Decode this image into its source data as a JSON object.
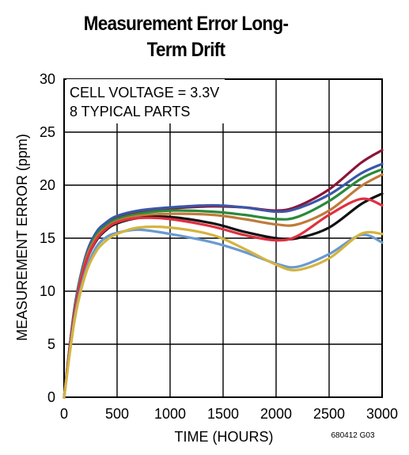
{
  "chart_data": {
    "type": "line",
    "title_lines": [
      "Measurement Error Long-",
      "Term Drift"
    ],
    "xlabel": "TIME (HOURS)",
    "ylabel": "MEASUREMENT ERROR (ppm)",
    "xlim": [
      0,
      3000
    ],
    "ylim": [
      0,
      30
    ],
    "xticks": [
      0,
      500,
      1000,
      1500,
      2000,
      2500,
      3000
    ],
    "yticks": [
      0,
      5,
      10,
      15,
      20,
      25,
      30
    ],
    "grid": true,
    "annotations": [
      "CELL VOLTAGE = 3.3V",
      "8 TYPICAL PARTS"
    ],
    "figure_code": "680412 G03",
    "colors": [
      "#8b1538",
      "#3a57a8",
      "#2a8a3a",
      "#c07a3a",
      "#111111",
      "#e03040",
      "#6a9ad0",
      "#d4b440"
    ],
    "series": [
      {
        "x": [
          0,
          100,
          200,
          300,
          400,
          500,
          700,
          1000,
          1400,
          1700,
          2000,
          2200,
          2500,
          2800,
          3000
        ],
        "values": [
          0,
          8.5,
          13.0,
          15.3,
          16.4,
          17.0,
          17.5,
          17.8,
          18.0,
          17.9,
          17.6,
          18.0,
          19.6,
          22.1,
          23.3
        ]
      },
      {
        "x": [
          0,
          100,
          200,
          300,
          400,
          500,
          700,
          1000,
          1400,
          1700,
          2000,
          2200,
          2500,
          2800,
          3000
        ],
        "values": [
          0,
          8.5,
          13.2,
          15.5,
          16.5,
          17.1,
          17.6,
          17.9,
          18.1,
          17.9,
          17.5,
          17.8,
          19.1,
          21.1,
          22.0
        ]
      },
      {
        "x": [
          0,
          100,
          200,
          300,
          400,
          500,
          700,
          1000,
          1400,
          1700,
          2000,
          2200,
          2500,
          2800,
          3000
        ],
        "values": [
          0,
          8.3,
          12.9,
          15.2,
          16.2,
          16.8,
          17.3,
          17.6,
          17.5,
          17.2,
          16.8,
          17.0,
          18.5,
          20.6,
          21.5
        ]
      },
      {
        "x": [
          0,
          100,
          200,
          300,
          400,
          500,
          700,
          1000,
          1400,
          1700,
          2000,
          2200,
          2500,
          2800,
          3000
        ],
        "values": [
          0,
          8.2,
          12.8,
          15.0,
          16.0,
          16.6,
          17.1,
          17.3,
          17.2,
          16.8,
          16.3,
          16.3,
          17.6,
          19.9,
          21.0
        ]
      },
      {
        "x": [
          0,
          100,
          200,
          300,
          400,
          500,
          700,
          1000,
          1400,
          1700,
          2000,
          2200,
          2500,
          2800,
          3000
        ],
        "values": [
          0,
          8.0,
          12.5,
          14.7,
          15.8,
          16.4,
          16.9,
          17.0,
          16.4,
          15.6,
          15.0,
          15.0,
          16.0,
          18.2,
          19.2
        ]
      },
      {
        "x": [
          0,
          100,
          200,
          300,
          400,
          500,
          700,
          1000,
          1400,
          1700,
          2000,
          2200,
          2500,
          2800,
          3000
        ],
        "values": [
          0,
          8.0,
          12.5,
          14.8,
          15.9,
          16.5,
          16.9,
          16.8,
          16.1,
          15.3,
          14.8,
          15.2,
          17.2,
          18.7,
          18.1
        ]
      },
      {
        "x": [
          0,
          100,
          200,
          300,
          400,
          500,
          700,
          1000,
          1400,
          1700,
          2000,
          2200,
          2500,
          2800,
          3000
        ],
        "values": [
          0,
          7.5,
          11.8,
          14.1,
          15.1,
          15.5,
          15.8,
          15.4,
          14.6,
          13.7,
          12.6,
          12.3,
          13.5,
          15.3,
          14.6
        ]
      },
      {
        "x": [
          0,
          100,
          200,
          300,
          400,
          500,
          700,
          1000,
          1400,
          1700,
          2000,
          2200,
          2500,
          2800,
          3000
        ],
        "values": [
          0,
          7.3,
          11.5,
          13.7,
          14.8,
          15.4,
          16.0,
          16.0,
          15.3,
          14.0,
          12.5,
          12.0,
          13.1,
          15.4,
          15.4
        ]
      }
    ]
  }
}
